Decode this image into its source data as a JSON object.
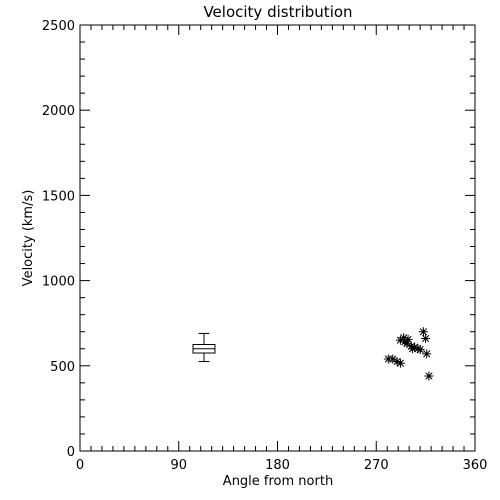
{
  "chart_data": {
    "type": "scatter",
    "title": "Velocity distribution",
    "xlabel": "Angle from north",
    "ylabel": "Velocity (km/s)",
    "xlim": [
      0,
      360
    ],
    "ylim": [
      0,
      2500
    ],
    "x_ticks": [
      0,
      90,
      180,
      270,
      360
    ],
    "y_ticks": [
      0,
      500,
      1000,
      1500,
      2000,
      2500
    ],
    "x_tick_labels": [
      "0",
      "90",
      "180",
      "270",
      "360"
    ],
    "y_tick_labels": [
      "0",
      "500",
      "1000",
      "1500",
      "2000",
      "2500"
    ],
    "x_minor_step": 10,
    "y_minor_step": 100,
    "grid": false,
    "boxplot": {
      "x": 113,
      "x_range": [
        103,
        123
      ],
      "whisker_low": 525,
      "q1": 575,
      "median": 600,
      "q3": 625,
      "whisker_high": 690
    },
    "points": [
      {
        "x": 281,
        "y": 540
      },
      {
        "x": 285,
        "y": 540
      },
      {
        "x": 289,
        "y": 525
      },
      {
        "x": 292,
        "y": 515
      },
      {
        "x": 292,
        "y": 650
      },
      {
        "x": 295,
        "y": 665
      },
      {
        "x": 296,
        "y": 640
      },
      {
        "x": 298,
        "y": 630
      },
      {
        "x": 299,
        "y": 655
      },
      {
        "x": 302,
        "y": 615
      },
      {
        "x": 303,
        "y": 600
      },
      {
        "x": 305,
        "y": 610
      },
      {
        "x": 308,
        "y": 600
      },
      {
        "x": 310,
        "y": 595
      },
      {
        "x": 313,
        "y": 700
      },
      {
        "x": 315,
        "y": 660
      },
      {
        "x": 316,
        "y": 570
      },
      {
        "x": 318,
        "y": 440
      }
    ]
  }
}
